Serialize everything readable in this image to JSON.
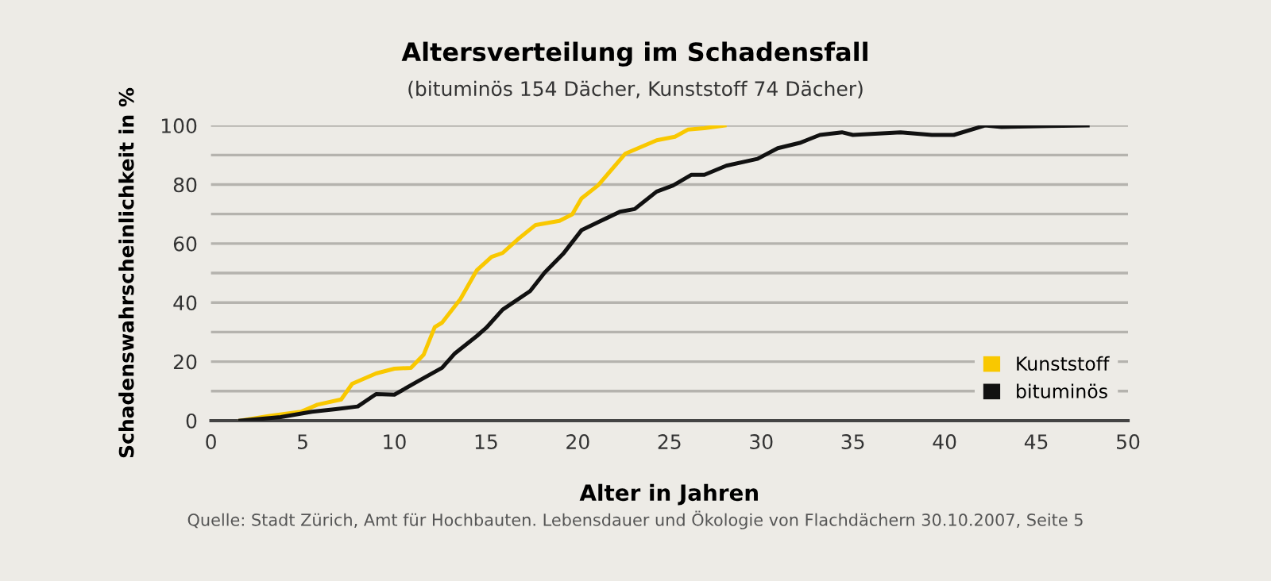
{
  "chart_data": {
    "type": "line",
    "title": "Altersverteilung im Schadensfall",
    "subtitle": "(bituminös 154 Dächer, Kunststoff 74 Dächer)",
    "xlabel": "Alter in Jahren",
    "ylabel": "Schadenswahrscheinlichkeit in %",
    "annotations": [
      "Quelle: Stadt Zürich, Amt für Hochbauten. Lebensdauer und Ökologie von Flachdächern 30.10.2007, Seite 5"
    ],
    "series": [
      {
        "name": "Kunststoff",
        "color": "#f9c800",
        "x": [
          1.6,
          3.2,
          4.9,
          5.8,
          7.1,
          7.7,
          9.0,
          10.0,
          10.9,
          11.6,
          12.2,
          12.6,
          13.6,
          14.5,
          15.3,
          15.9,
          16.8,
          17.7,
          19.0,
          19.7,
          20.2,
          21.1,
          22.6,
          24.3,
          25.3,
          26.0,
          26.9,
          28.0
        ],
        "values": [
          0,
          1.6,
          3,
          5.4,
          7.2,
          12.5,
          16,
          17.6,
          17.9,
          22.4,
          31.7,
          33.2,
          41.2,
          51,
          55.5,
          56.8,
          61.8,
          66.3,
          67.7,
          69.9,
          75.3,
          79.7,
          90.5,
          95,
          96.2,
          98.6,
          99.1,
          100
        ]
      },
      {
        "name": "bituminös",
        "color": "#111111",
        "x": [
          1.6,
          3.8,
          5.5,
          6.8,
          8.0,
          9.0,
          10.0,
          11.3,
          12.6,
          13.3,
          14.5,
          15.0,
          15.9,
          17.4,
          18.2,
          19.2,
          20.2,
          21.1,
          22.3,
          23.1,
          24.3,
          25.2,
          26.2,
          26.9,
          28.1,
          29.8,
          30.9,
          32.1,
          33.2,
          34.4,
          35.0,
          37.6,
          39.3,
          40.5,
          42.2,
          43.1,
          45.7,
          47.8
        ],
        "values": [
          0,
          1.2,
          3,
          3.9,
          4.8,
          9,
          8.8,
          13.4,
          17.9,
          22.8,
          28.7,
          31.4,
          37.6,
          43.9,
          50.2,
          56.5,
          64.5,
          67.2,
          70.8,
          71.7,
          77.6,
          79.7,
          83.3,
          83.3,
          86.4,
          88.7,
          92.3,
          94.1,
          96.8,
          97.7,
          96.8,
          97.7,
          96.8,
          96.8,
          100,
          99.5,
          99.8,
          100
        ]
      }
    ],
    "xlim": [
      0,
      50
    ],
    "xticks": [
      0,
      5,
      10,
      15,
      20,
      25,
      30,
      35,
      40,
      45,
      50
    ],
    "ylim": [
      0,
      100
    ],
    "yticks": [
      0,
      {
        "value": 10,
        "label": null
      },
      20,
      {
        "value": 30,
        "label": null
      },
      40,
      {
        "value": 50,
        "label": null
      },
      60,
      {
        "value": 70,
        "label": null
      },
      80,
      {
        "value": 90,
        "label": null
      },
      100
    ],
    "grid": "y",
    "legend": "bottom right",
    "line_style": "solid"
  }
}
